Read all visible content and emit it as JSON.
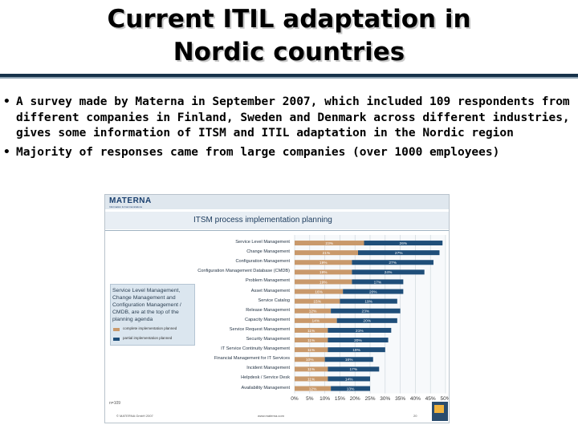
{
  "title": {
    "line1": "Current ITIL adaptation in",
    "line2": "Nordic countries"
  },
  "bullets": [
    "A survey made by Materna in September 2007, which included 109 respondents from different companies in Finland, Sweden and Denmark across different industries, gives some information of ITSM and ITIL adaptation in the Nordic region",
    "Majority of responses came from large companies (over 1000 employees)"
  ],
  "slide": {
    "brand": "MATERNA",
    "brand_sub": "Information & Communications",
    "title": "ITSM process implementation planning",
    "callout": "Service Level Management, Change Management and Configuration Management / CMDB, are at the top of the planning agenda",
    "legend": [
      {
        "label": "complete implementation planned",
        "color": "#c9996b"
      },
      {
        "label": "partial implementation planned",
        "color": "#1f4e79"
      }
    ],
    "footer_left": "n=109",
    "footer_copy": "© MATERNA GmbH 2007",
    "footer_url": "www.materna.com",
    "page_number": "20"
  },
  "chart_data": {
    "type": "bar",
    "orientation": "horizontal",
    "stacked": true,
    "categories": [
      "Service Level Management",
      "Change Management",
      "Configuration Management",
      "Configuration Management Database (CMDB)",
      "Problem Management",
      "Asset Management",
      "Service Catalog",
      "Release Management",
      "Capacity Management",
      "Service Request Management",
      "Security Management",
      "IT Service Continuity Management",
      "Financial Management for IT Services",
      "Incident Management",
      "Helpdesk / Service Desk",
      "Availability Management"
    ],
    "series": [
      {
        "name": "complete implementation planned",
        "color": "#c9996b",
        "values": [
          23,
          21,
          19,
          19,
          19,
          16,
          15,
          12,
          14,
          11,
          11,
          11,
          10,
          11,
          11,
          12
        ],
        "labels": [
          "23%",
          "21%",
          "19%",
          "19%",
          "19%",
          "16%",
          "15%",
          "12%",
          "14%",
          "11%",
          "11%",
          "11%",
          "10%",
          "11%",
          "11%",
          "12%"
        ]
      },
      {
        "name": "partial implementation planned",
        "color": "#1f4e79",
        "values": [
          26,
          27,
          27,
          24,
          17,
          20,
          19,
          23,
          20,
          21,
          20,
          19,
          16,
          17,
          14,
          13
        ],
        "labels": [
          "26%",
          "27%",
          "27%",
          "24%",
          "17%",
          "20%",
          "19%",
          "23%",
          "20%",
          "21%",
          "20%",
          "19%",
          "16%",
          "17%",
          "14%",
          "13%"
        ]
      }
    ],
    "xlim": [
      0,
      50
    ],
    "xticks": [
      "0%",
      "5%",
      "10%",
      "15%",
      "20%",
      "25%",
      "30%",
      "35%",
      "40%",
      "45%",
      "50%"
    ],
    "grid": true
  }
}
